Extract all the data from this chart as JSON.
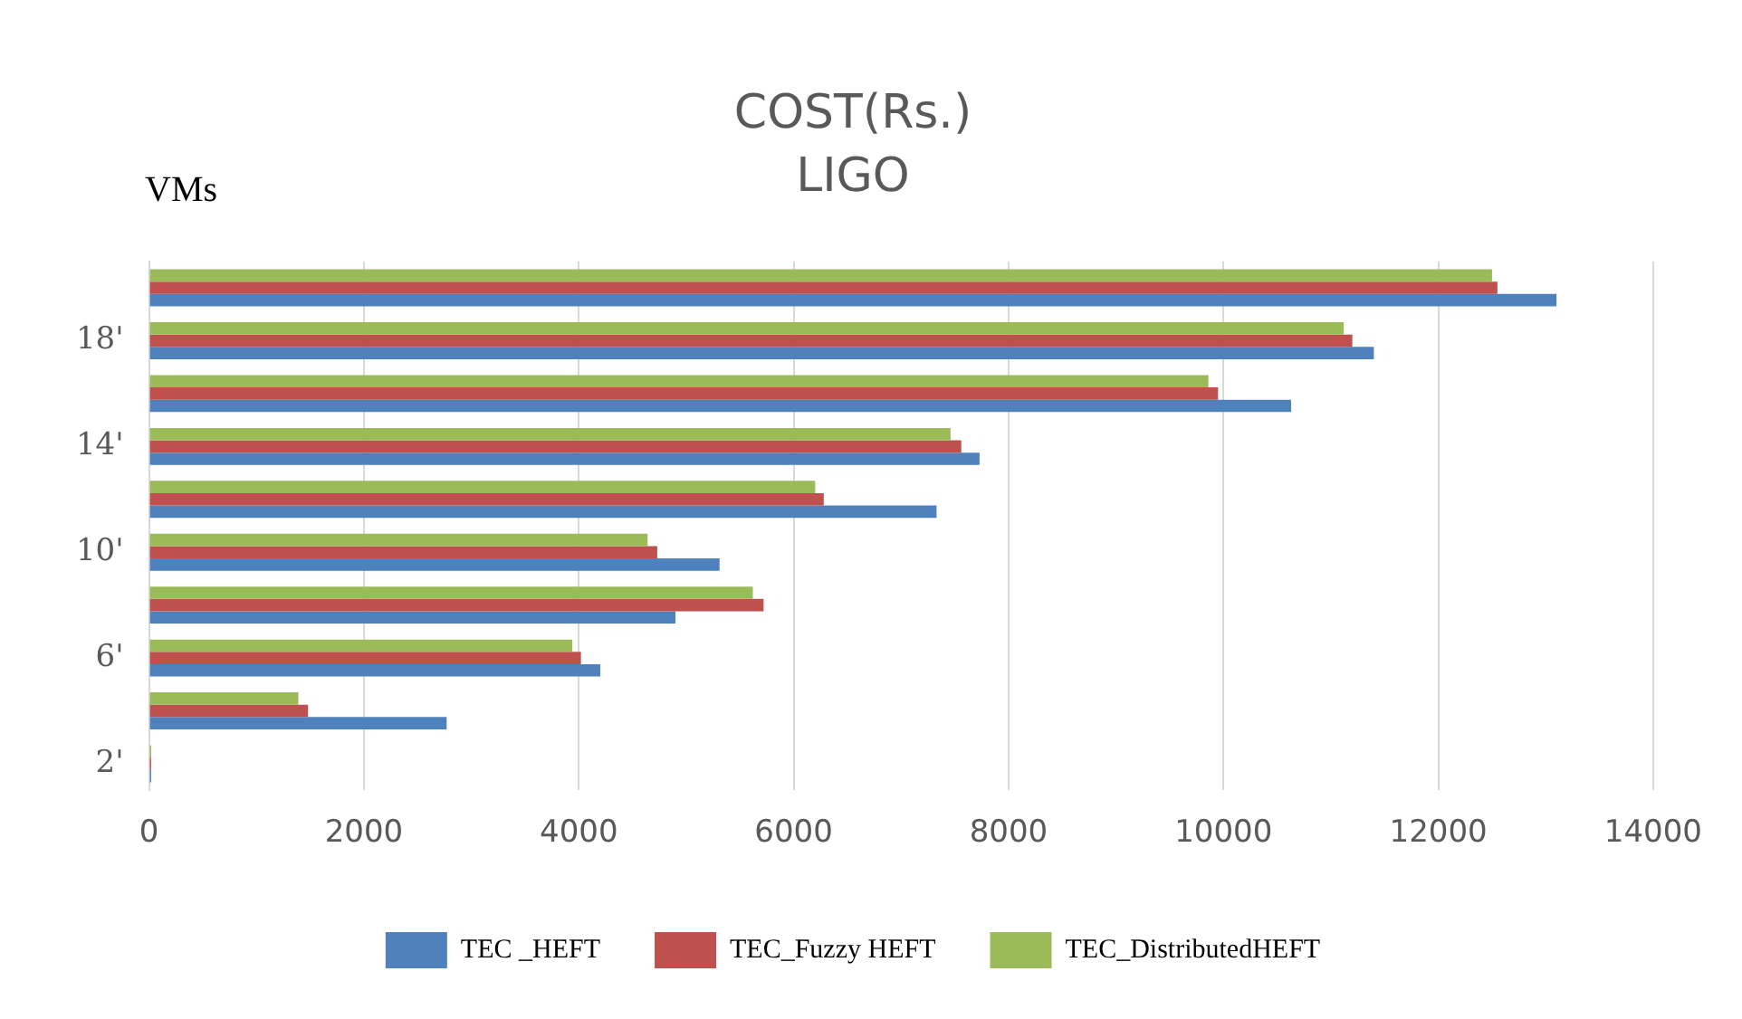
{
  "chart_data": {
    "type": "bar",
    "orientation": "horizontal",
    "title": "COST(Rs.)",
    "subtitle": "LIGO",
    "ylabel": "VMs",
    "categories": [
      null,
      "18'",
      null,
      "14'",
      null,
      "10'",
      null,
      "6'",
      null,
      "2'"
    ],
    "series": [
      {
        "name": "TEC _HEFT",
        "color": "#4f81bd",
        "values": [
          13100,
          11400,
          10630,
          7730,
          7330,
          5310,
          4900,
          4200,
          2770,
          20
        ]
      },
      {
        "name": "TEC_Fuzzy HEFT",
        "color": "#c0504d",
        "values": [
          12550,
          11200,
          9950,
          7560,
          6280,
          4730,
          5720,
          4020,
          1480,
          20
        ]
      },
      {
        "name": "TEC_DistributedHEFT",
        "color": "#9bbb59",
        "values": [
          12500,
          11120,
          9860,
          7460,
          6200,
          4640,
          5620,
          3940,
          1390,
          20
        ]
      }
    ],
    "xlim": [
      0,
      14000
    ],
    "xticks": [
      0,
      2000,
      4000,
      6000,
      8000,
      10000,
      12000,
      14000
    ],
    "grid": "x",
    "legend": "bottom"
  }
}
